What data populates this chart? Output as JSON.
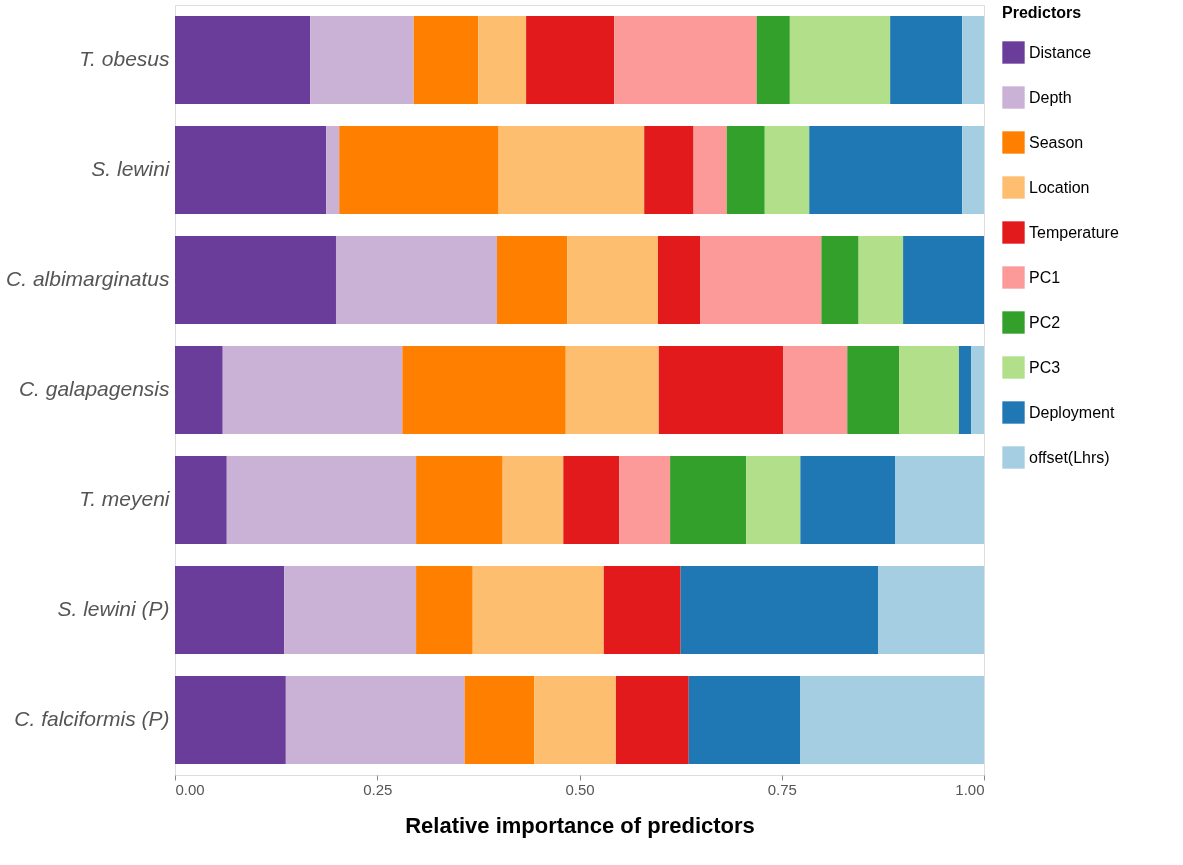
{
  "chart_data": {
    "type": "bar",
    "orientation": "horizontal",
    "stacked": true,
    "xlabel": "Relative importance of predictors",
    "legend_title": "Predictors",
    "legend": "right",
    "grid": false,
    "categories": [
      "T. obesus",
      "S. lewini",
      "C. albimarginatus",
      "C. galapagensis",
      "T. meyeni",
      "S. lewini (P)",
      "C. falciformis (P)"
    ],
    "xlim": [
      0,
      1
    ],
    "xticks": [
      {
        "value": 0,
        "label": "0.00"
      },
      {
        "value": 0.25,
        "label": "0.25"
      },
      {
        "value": 0.5,
        "label": "0.50"
      },
      {
        "value": 0.75,
        "label": "0.75"
      },
      {
        "value": 1,
        "label": "1.00"
      }
    ],
    "series": [
      {
        "name": "Distance",
        "color": "#6a3d9a",
        "values": [
          0.167,
          0.187,
          0.199,
          0.059,
          0.064,
          0.135,
          0.137
        ]
      },
      {
        "name": "Depth",
        "color": "#cab2d6",
        "values": [
          0.128,
          0.016,
          0.199,
          0.222,
          0.234,
          0.163,
          0.221
        ]
      },
      {
        "name": "Season",
        "color": "#ff7f00",
        "values": [
          0.08,
          0.197,
          0.087,
          0.202,
          0.107,
          0.07,
          0.086
        ]
      },
      {
        "name": "Location",
        "color": "#fdbf6f",
        "values": [
          0.059,
          0.18,
          0.112,
          0.115,
          0.075,
          0.162,
          0.101
        ]
      },
      {
        "name": "Temperature",
        "color": "#e31a1c",
        "values": [
          0.109,
          0.061,
          0.052,
          0.154,
          0.069,
          0.095,
          0.09
        ]
      },
      {
        "name": "PC1",
        "color": "#fb9a99",
        "values": [
          0.176,
          0.041,
          0.15,
          0.079,
          0.063,
          0,
          0
        ]
      },
      {
        "name": "PC2",
        "color": "#33a02c",
        "values": [
          0.041,
          0.047,
          0.046,
          0.064,
          0.094,
          0,
          0
        ]
      },
      {
        "name": "PC3",
        "color": "#b2df8a",
        "values": [
          0.124,
          0.055,
          0.055,
          0.074,
          0.067,
          0,
          0
        ]
      },
      {
        "name": "Deployment",
        "color": "#1f78b4",
        "values": [
          0.089,
          0.189,
          0.1,
          0.015,
          0.117,
          0.244,
          0.138
        ]
      },
      {
        "name": "offset(Lhrs)",
        "color": "#a6cee3",
        "values": [
          0.027,
          0.027,
          0,
          0.016,
          0.11,
          0.131,
          0.227
        ]
      }
    ]
  }
}
